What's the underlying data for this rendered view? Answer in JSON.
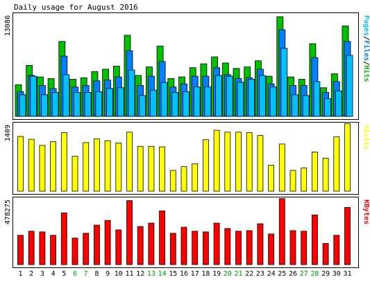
{
  "chart_data": {
    "type": "bar",
    "title": "Daily usage for August 2016",
    "categories": [
      "1",
      "2",
      "3",
      "4",
      "5",
      "6",
      "7",
      "8",
      "9",
      "10",
      "11",
      "12",
      "13",
      "14",
      "15",
      "16",
      "17",
      "18",
      "19",
      "20",
      "21",
      "22",
      "23",
      "24",
      "25",
      "26",
      "27",
      "28",
      "29",
      "30",
      "31"
    ],
    "weekend_days": [
      "6",
      "7",
      "13",
      "14",
      "20",
      "21",
      "27",
      "28"
    ],
    "panels": [
      {
        "id": "traffic",
        "ymax_label": "13086",
        "ylim": [
          0,
          13086
        ],
        "axis_label_parts": [
          {
            "text": "Pages",
            "color": "#00c0ff"
          },
          {
            "text": "/",
            "color": "#000000"
          },
          {
            "text": "Files",
            "color": "#0080ff"
          },
          {
            "text": "/",
            "color": "#000000"
          },
          {
            "text": "Hits",
            "color": "#00c000"
          }
        ],
        "series": [
          {
            "name": "Hits",
            "color": "#00c000",
            "values": [
              4100,
              6600,
              5100,
              4900,
              9700,
              4800,
              5000,
              5800,
              6100,
              6500,
              10500,
              5300,
              6400,
              9100,
              4900,
              5100,
              6300,
              6800,
              7700,
              6900,
              6200,
              6400,
              7200,
              5200,
              12900,
              5100,
              4800,
              9400,
              3700,
              5500,
              11700
            ]
          },
          {
            "name": "Files",
            "color": "#0080ff",
            "values": [
              3200,
              5300,
              4000,
              3600,
              7800,
              3800,
              4000,
              4600,
              4700,
              5100,
              8500,
              4000,
              5200,
              7100,
              3800,
              4200,
              5200,
              5200,
              6300,
              5400,
              4900,
              5000,
              6100,
              4200,
              11200,
              4000,
              4000,
              7600,
              3100,
              4500,
              9700
            ]
          },
          {
            "name": "Pages",
            "color": "#00c0ff",
            "values": [
              2800,
              5200,
              2800,
              3100,
              5400,
              3100,
              3100,
              3200,
              3600,
              3700,
              6000,
              2700,
              3400,
              4400,
              3100,
              3200,
              3800,
              3800,
              5300,
              5200,
              4400,
              4800,
              5300,
              3800,
              8800,
              2800,
              2700,
              4500,
              2300,
              3300,
              7900
            ]
          }
        ]
      },
      {
        "id": "visits",
        "ymax_label": "1409",
        "ylim": [
          0,
          1409
        ],
        "axis_label_parts": [
          {
            "text": "Visits",
            "color": "#ffff00"
          }
        ],
        "series": [
          {
            "name": "Visits",
            "color": "#ffff00",
            "values": [
              1160,
              1100,
              970,
              1050,
              1240,
              740,
              1030,
              1110,
              1070,
              1020,
              1250,
              950,
              950,
              940,
              440,
              520,
              580,
              1090,
              1290,
              1250,
              1250,
              1240,
              1180,
              550,
              1000,
              440,
              490,
              830,
              700,
              1150,
              1430
            ]
          }
        ]
      },
      {
        "id": "kbytes",
        "ymax_label": "478275",
        "ylim": [
          0,
          478275
        ],
        "axis_label_parts": [
          {
            "text": "KBytes",
            "color": "#ff0000"
          }
        ],
        "series": [
          {
            "name": "KBytes",
            "color": "#ff0000",
            "values": [
              215000,
              245000,
              240000,
              215000,
              380000,
              195000,
              230000,
              290000,
              325000,
              255000,
              470000,
              280000,
              305000,
              395000,
              230000,
              275000,
              245000,
              240000,
              305000,
              265000,
              245000,
              250000,
              300000,
              225000,
              485000,
              250000,
              245000,
              365000,
              155000,
              215000,
              420000
            ]
          }
        ]
      }
    ]
  }
}
